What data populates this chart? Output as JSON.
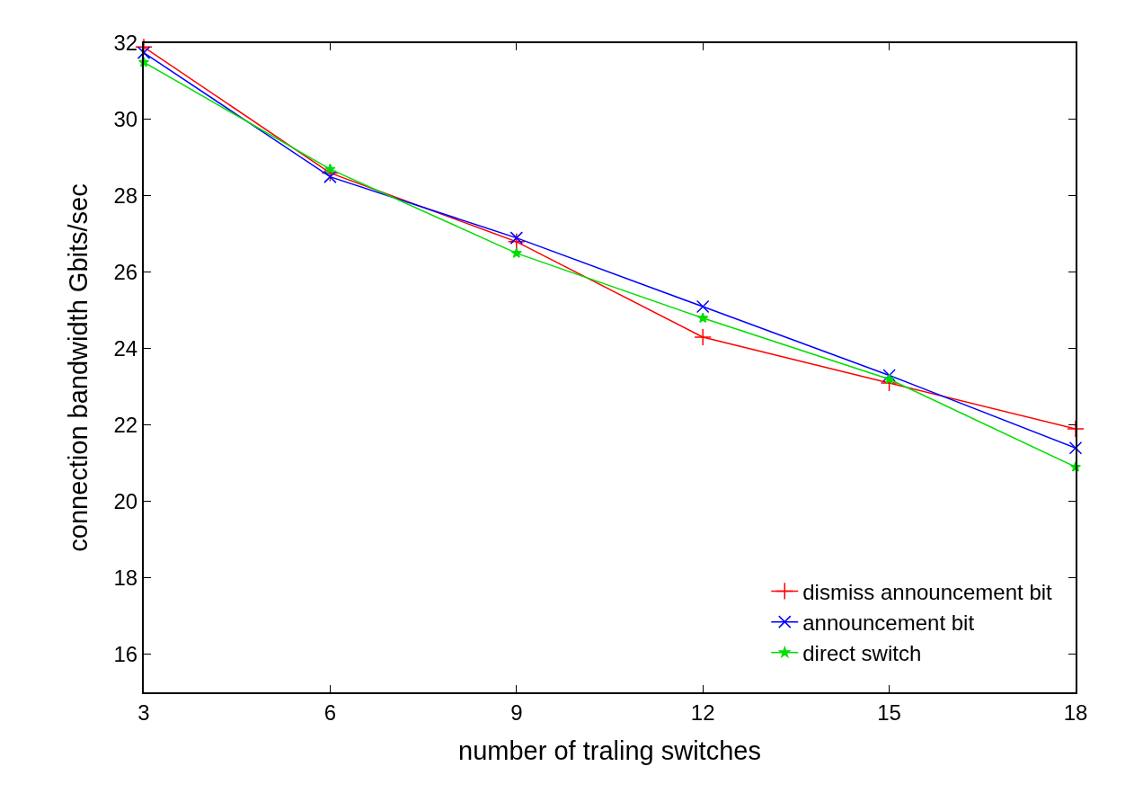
{
  "chart_data": {
    "type": "line",
    "xlabel": "number of traling switches",
    "ylabel": "connection bandwidth Gbits/sec",
    "x": [
      3,
      6,
      9,
      12,
      15,
      18
    ],
    "xlim": [
      3,
      18
    ],
    "xticks": [
      3,
      6,
      9,
      12,
      15,
      18
    ],
    "ylim": [
      15,
      32
    ],
    "yticks": [
      16,
      18,
      20,
      22,
      24,
      26,
      28,
      30,
      32
    ],
    "grid": false,
    "legend": "bottom right",
    "series": [
      {
        "name": "dismiss announcement bit",
        "color": "#ff0000",
        "marker": "cross",
        "values": [
          31.9,
          28.6,
          26.8,
          24.3,
          23.1,
          21.9
        ]
      },
      {
        "name": "announcement bit",
        "color": "#0000ff",
        "marker": "x",
        "values": [
          31.75,
          28.5,
          26.9,
          25.1,
          23.3,
          21.4
        ]
      },
      {
        "name": "direct switch",
        "color": "#00dd00",
        "marker": "star",
        "values": [
          31.5,
          28.7,
          26.5,
          24.8,
          23.2,
          20.9
        ]
      }
    ]
  }
}
